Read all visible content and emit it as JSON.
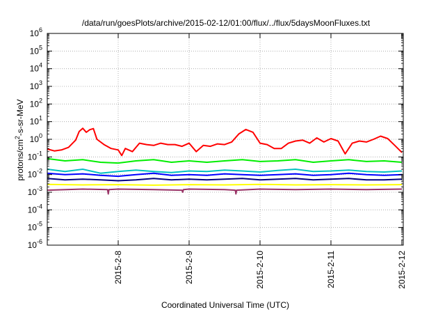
{
  "chart_data": {
    "type": "line",
    "title": "/data/run/goesPlots/archive/2015-02-12/01:00/flux/../flux/5daysMoonFluxes.txt",
    "xlabel": "Coordinated Universal Time (UTC)",
    "ylabel_base": "protons/cm",
    "ylabel_sup": "2",
    "ylabel_rest": "-s-sr-MeV",
    "y_scale": "log",
    "ylim": [
      1e-06,
      1000000
    ],
    "xlim": [
      0,
      5.02
    ],
    "grid": true,
    "x_ticks": [
      {
        "pos": 1,
        "label": "2015-2-8"
      },
      {
        "pos": 2,
        "label": "2015-2-9"
      },
      {
        "pos": 3,
        "label": "2015-2-10"
      },
      {
        "pos": 4,
        "label": "2015-2-11"
      },
      {
        "pos": 5,
        "label": "2015-2-12"
      }
    ],
    "y_ticks": [
      {
        "exp": -6,
        "base": "10",
        "sup": "-6"
      },
      {
        "exp": -5,
        "base": "10",
        "sup": "-5"
      },
      {
        "exp": -4,
        "base": "10",
        "sup": "-4"
      },
      {
        "exp": -3,
        "base": "10",
        "sup": "-3"
      },
      {
        "exp": -2,
        "base": "10",
        "sup": "-2"
      },
      {
        "exp": -1,
        "base": "10",
        "sup": "-1"
      },
      {
        "exp": 0,
        "base": "10",
        "sup": "0"
      },
      {
        "exp": 1,
        "base": "10",
        "sup": "1"
      },
      {
        "exp": 2,
        "base": "10",
        "sup": "2"
      },
      {
        "exp": 3,
        "base": "10",
        "sup": "3"
      },
      {
        "exp": 4,
        "base": "10",
        "sup": "4"
      },
      {
        "exp": 5,
        "base": "10",
        "sup": "5"
      },
      {
        "exp": 6,
        "base": "10",
        "sup": "6"
      }
    ],
    "series": [
      {
        "color": "#ff0000",
        "x": [
          0,
          0.1,
          0.2,
          0.3,
          0.4,
          0.45,
          0.5,
          0.55,
          0.6,
          0.65,
          0.7,
          0.8,
          0.9,
          1.0,
          1.05,
          1.1,
          1.2,
          1.3,
          1.4,
          1.5,
          1.6,
          1.7,
          1.8,
          1.9,
          2.0,
          2.1,
          2.2,
          2.3,
          2.4,
          2.5,
          2.6,
          2.7,
          2.8,
          2.9,
          3.0,
          3.1,
          3.2,
          3.3,
          3.4,
          3.5,
          3.6,
          3.7,
          3.8,
          3.9,
          4.0,
          4.1,
          4.2,
          4.3,
          4.4,
          4.5,
          4.6,
          4.7,
          4.8,
          4.9,
          5.0
        ],
        "y": [
          0.28,
          0.22,
          0.25,
          0.35,
          0.9,
          2.8,
          4.2,
          2.5,
          3.5,
          4.0,
          1.0,
          0.5,
          0.3,
          0.25,
          0.12,
          0.3,
          0.2,
          0.6,
          0.5,
          0.45,
          0.6,
          0.5,
          0.5,
          0.4,
          0.6,
          0.2,
          0.45,
          0.4,
          0.55,
          0.5,
          0.7,
          2.0,
          3.6,
          2.5,
          0.6,
          0.5,
          0.3,
          0.3,
          0.6,
          0.8,
          0.9,
          0.6,
          1.2,
          0.7,
          1.1,
          0.8,
          0.15,
          0.6,
          0.8,
          0.7,
          1.0,
          1.5,
          1.1,
          0.45,
          0.18
        ]
      },
      {
        "color": "#00ee00",
        "x": [
          0,
          0.25,
          0.5,
          0.75,
          1.0,
          1.25,
          1.5,
          1.75,
          2.0,
          2.25,
          2.5,
          2.75,
          3.0,
          3.25,
          3.5,
          3.75,
          4.0,
          4.25,
          4.5,
          4.75,
          5.0
        ],
        "y": [
          0.08,
          0.06,
          0.07,
          0.05,
          0.045,
          0.06,
          0.07,
          0.05,
          0.06,
          0.05,
          0.06,
          0.07,
          0.055,
          0.06,
          0.07,
          0.05,
          0.06,
          0.07,
          0.055,
          0.06,
          0.05
        ]
      },
      {
        "color": "#00c0c0",
        "x": [
          0,
          0.25,
          0.5,
          0.75,
          1.0,
          1.25,
          1.5,
          1.75,
          2.0,
          2.25,
          2.5,
          2.75,
          3.0,
          3.25,
          3.5,
          3.75,
          4.0,
          4.25,
          4.5,
          4.75,
          5.0
        ],
        "y": [
          0.02,
          0.015,
          0.02,
          0.012,
          0.015,
          0.018,
          0.015,
          0.013,
          0.016,
          0.015,
          0.018,
          0.016,
          0.014,
          0.017,
          0.02,
          0.015,
          0.016,
          0.018,
          0.015,
          0.014,
          0.016
        ]
      },
      {
        "color": "#0000ff",
        "x": [
          0,
          0.25,
          0.5,
          0.75,
          1.0,
          1.25,
          1.5,
          1.75,
          2.0,
          2.25,
          2.5,
          2.75,
          3.0,
          3.25,
          3.5,
          3.75,
          4.0,
          4.25,
          4.5,
          4.75,
          5.0
        ],
        "y": [
          0.012,
          0.01,
          0.011,
          0.009,
          0.008,
          0.01,
          0.012,
          0.009,
          0.01,
          0.009,
          0.011,
          0.01,
          0.009,
          0.01,
          0.011,
          0.009,
          0.01,
          0.012,
          0.01,
          0.009,
          0.01
        ]
      },
      {
        "color": "#000080",
        "x": [
          0,
          0.25,
          0.5,
          0.75,
          1.0,
          1.25,
          1.5,
          1.75,
          2.0,
          2.25,
          2.5,
          2.75,
          3.0,
          3.25,
          3.5,
          3.75,
          4.0,
          4.25,
          4.5,
          4.75,
          5.0
        ],
        "y": [
          0.006,
          0.005,
          0.0055,
          0.005,
          0.0045,
          0.005,
          0.006,
          0.005,
          0.0055,
          0.005,
          0.0055,
          0.006,
          0.005,
          0.0055,
          0.006,
          0.005,
          0.0055,
          0.006,
          0.005,
          0.005,
          0.0055
        ]
      },
      {
        "color": "#ffff00",
        "x": [
          0,
          0.5,
          1.0,
          1.5,
          2.0,
          2.5,
          3.0,
          3.5,
          4.0,
          4.5,
          5.0
        ],
        "y": [
          0.0028,
          0.0026,
          0.0027,
          0.0025,
          0.0027,
          0.0026,
          0.0028,
          0.0026,
          0.0027,
          0.0026,
          0.0027
        ]
      },
      {
        "color": "#993366",
        "x": [
          0,
          0.5,
          0.85,
          0.86,
          0.87,
          1.0,
          1.5,
          1.9,
          1.91,
          1.92,
          2.0,
          2.5,
          2.65,
          2.66,
          2.67,
          3.0,
          3.5,
          4.0,
          4.5,
          5.0
        ],
        "y": [
          0.0013,
          0.0015,
          0.0014,
          0.0008,
          0.0014,
          0.0015,
          0.0014,
          0.0013,
          0.001,
          0.0014,
          0.0015,
          0.0014,
          0.0013,
          0.0008,
          0.0013,
          0.0015,
          0.0014,
          0.0015,
          0.0014,
          0.0015
        ]
      }
    ]
  }
}
